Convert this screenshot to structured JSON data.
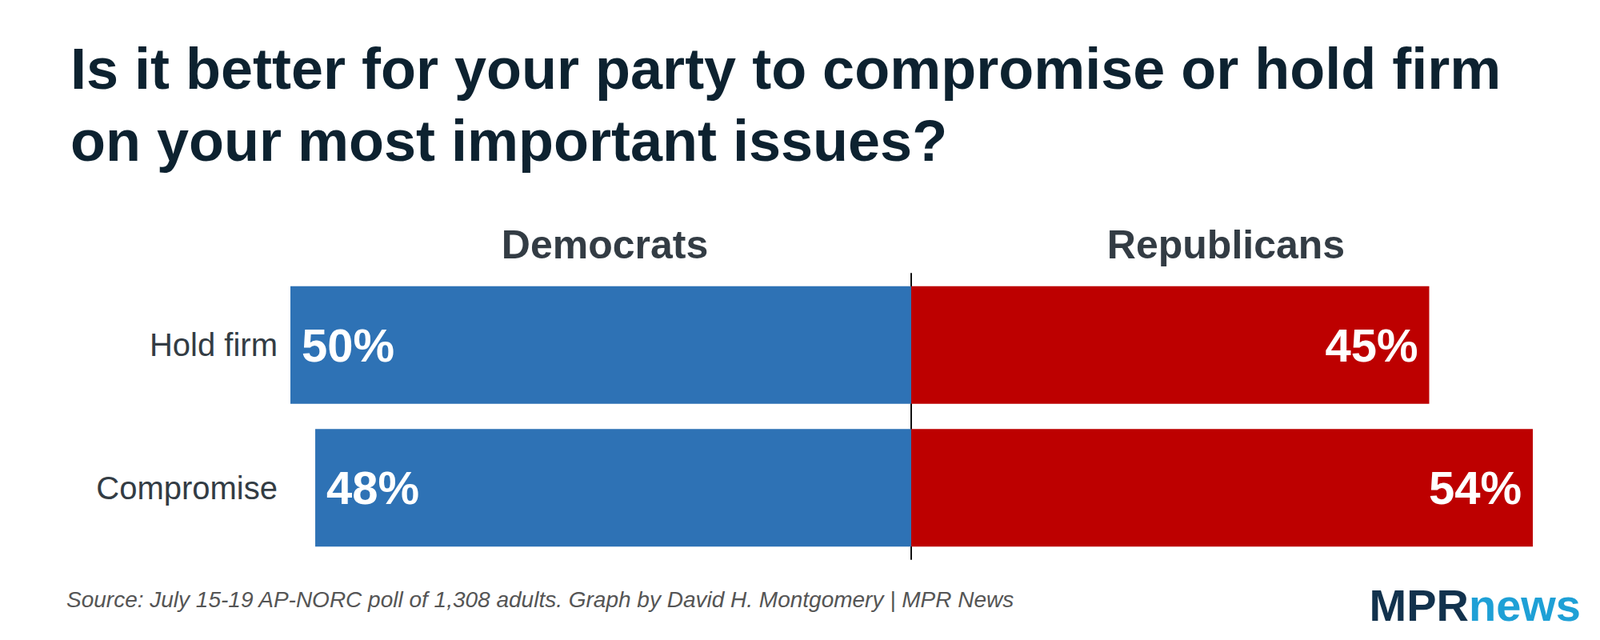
{
  "title": "Is it better for your party to compromise or hold firm on your most important issues?",
  "source": "Source: July 15-19 AP-NORC poll of 1,308 adults. Graph by David H. Montgomery | MPR News",
  "logo": [
    "MPR",
    "news"
  ],
  "chart_data": [
    {
      "type": "bar",
      "title": "Democrats",
      "orientation": "horizontal",
      "categories": [
        "Hold firm",
        "Compromise"
      ],
      "values": [
        50,
        48
      ],
      "value_labels": [
        "50%",
        "48%"
      ],
      "color": "#2e72b5",
      "xlim": [
        0,
        50
      ],
      "data_labels": true,
      "tick_labels": "y",
      "grid": false
    },
    {
      "type": "bar",
      "title": "Republicans",
      "orientation": "horizontal",
      "categories": [
        "Hold firm",
        "Compromise"
      ],
      "values": [
        45,
        54
      ],
      "value_labels": [
        "45%",
        "54%"
      ],
      "color": "#bd0000",
      "xlim": [
        0,
        54
      ],
      "data_labels": true,
      "tick_labels": false,
      "grid": false
    }
  ]
}
